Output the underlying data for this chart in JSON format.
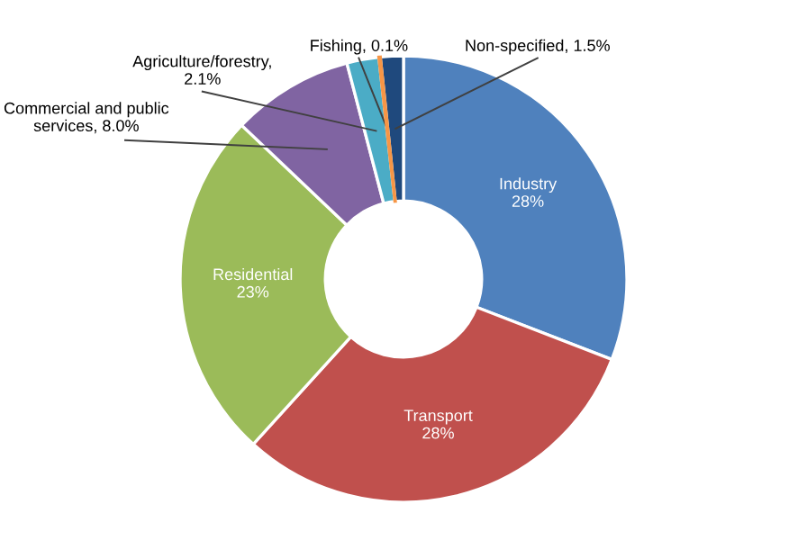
{
  "chart_data": {
    "type": "donut",
    "categories": [
      "Industry",
      "Transport",
      "Residential",
      "Commercial and public services",
      "Agriculture/forestry",
      "Fishing",
      "Non-specified"
    ],
    "values": [
      28,
      28,
      23,
      8.0,
      2.1,
      0.1,
      1.5
    ],
    "colors": [
      "#4f81bd",
      "#c0504d",
      "#9bbb59",
      "#8064a2",
      "#4bacc6",
      "#f79646",
      "#1f497d"
    ],
    "value_labels": [
      "28%",
      "28%",
      "23%",
      ", 8.0%",
      ", 2.1%",
      ", 0.1%",
      ", 1.5%"
    ],
    "legend": false
  }
}
